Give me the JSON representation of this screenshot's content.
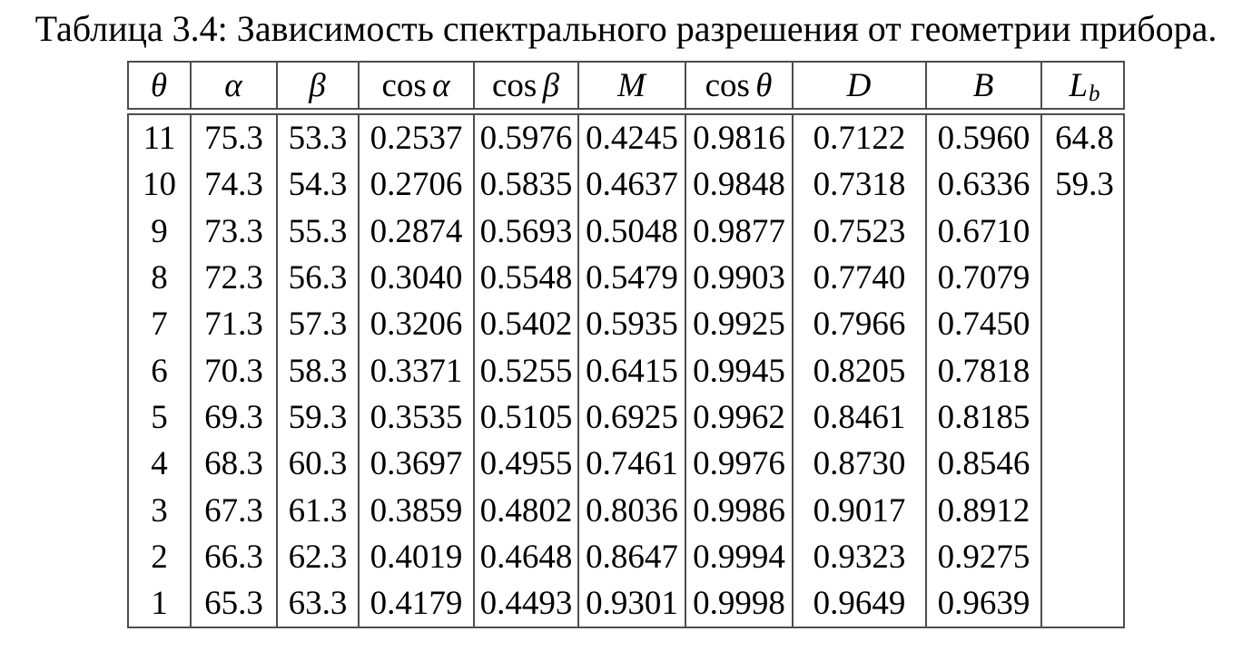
{
  "caption": "Таблица 3.4: Зависимость спектрального разрешения от геометрии прибора.",
  "table": {
    "headers": [
      {
        "var": "θ"
      },
      {
        "var": "α"
      },
      {
        "var": "β"
      },
      {
        "fn": "cos",
        "var": "α"
      },
      {
        "fn": "cos",
        "var": "β"
      },
      {
        "var": "M"
      },
      {
        "fn": "cos",
        "var": "θ"
      },
      {
        "var": "D"
      },
      {
        "var": "B"
      },
      {
        "var": "L",
        "sub": "b"
      }
    ],
    "rows": [
      [
        "11",
        "75.3",
        "53.3",
        "0.2537",
        "0.5976",
        "0.4245",
        "0.9816",
        "0.7122",
        "0.5960",
        "64.8"
      ],
      [
        "10",
        "74.3",
        "54.3",
        "0.2706",
        "0.5835",
        "0.4637",
        "0.9848",
        "0.7318",
        "0.6336",
        "59.3"
      ],
      [
        "9",
        "73.3",
        "55.3",
        "0.2874",
        "0.5693",
        "0.5048",
        "0.9877",
        "0.7523",
        "0.6710",
        ""
      ],
      [
        "8",
        "72.3",
        "56.3",
        "0.3040",
        "0.5548",
        "0.5479",
        "0.9903",
        "0.7740",
        "0.7079",
        ""
      ],
      [
        "7",
        "71.3",
        "57.3",
        "0.3206",
        "0.5402",
        "0.5935",
        "0.9925",
        "0.7966",
        "0.7450",
        ""
      ],
      [
        "6",
        "70.3",
        "58.3",
        "0.3371",
        "0.5255",
        "0.6415",
        "0.9945",
        "0.8205",
        "0.7818",
        ""
      ],
      [
        "5",
        "69.3",
        "59.3",
        "0.3535",
        "0.5105",
        "0.6925",
        "0.9962",
        "0.8461",
        "0.8185",
        ""
      ],
      [
        "4",
        "68.3",
        "60.3",
        "0.3697",
        "0.4955",
        "0.7461",
        "0.9976",
        "0.8730",
        "0.8546",
        ""
      ],
      [
        "3",
        "67.3",
        "61.3",
        "0.3859",
        "0.4802",
        "0.8036",
        "0.9986",
        "0.9017",
        "0.8912",
        ""
      ],
      [
        "2",
        "66.3",
        "62.3",
        "0.4019",
        "0.4648",
        "0.8647",
        "0.9994",
        "0.9323",
        "0.9275",
        ""
      ],
      [
        "1",
        "65.3",
        "63.3",
        "0.4179",
        "0.4493",
        "0.9301",
        "0.9998",
        "0.9649",
        "0.9639",
        ""
      ]
    ]
  },
  "colors": {
    "text": "#000000",
    "border": "#4d4d4d",
    "background": "#ffffff"
  }
}
